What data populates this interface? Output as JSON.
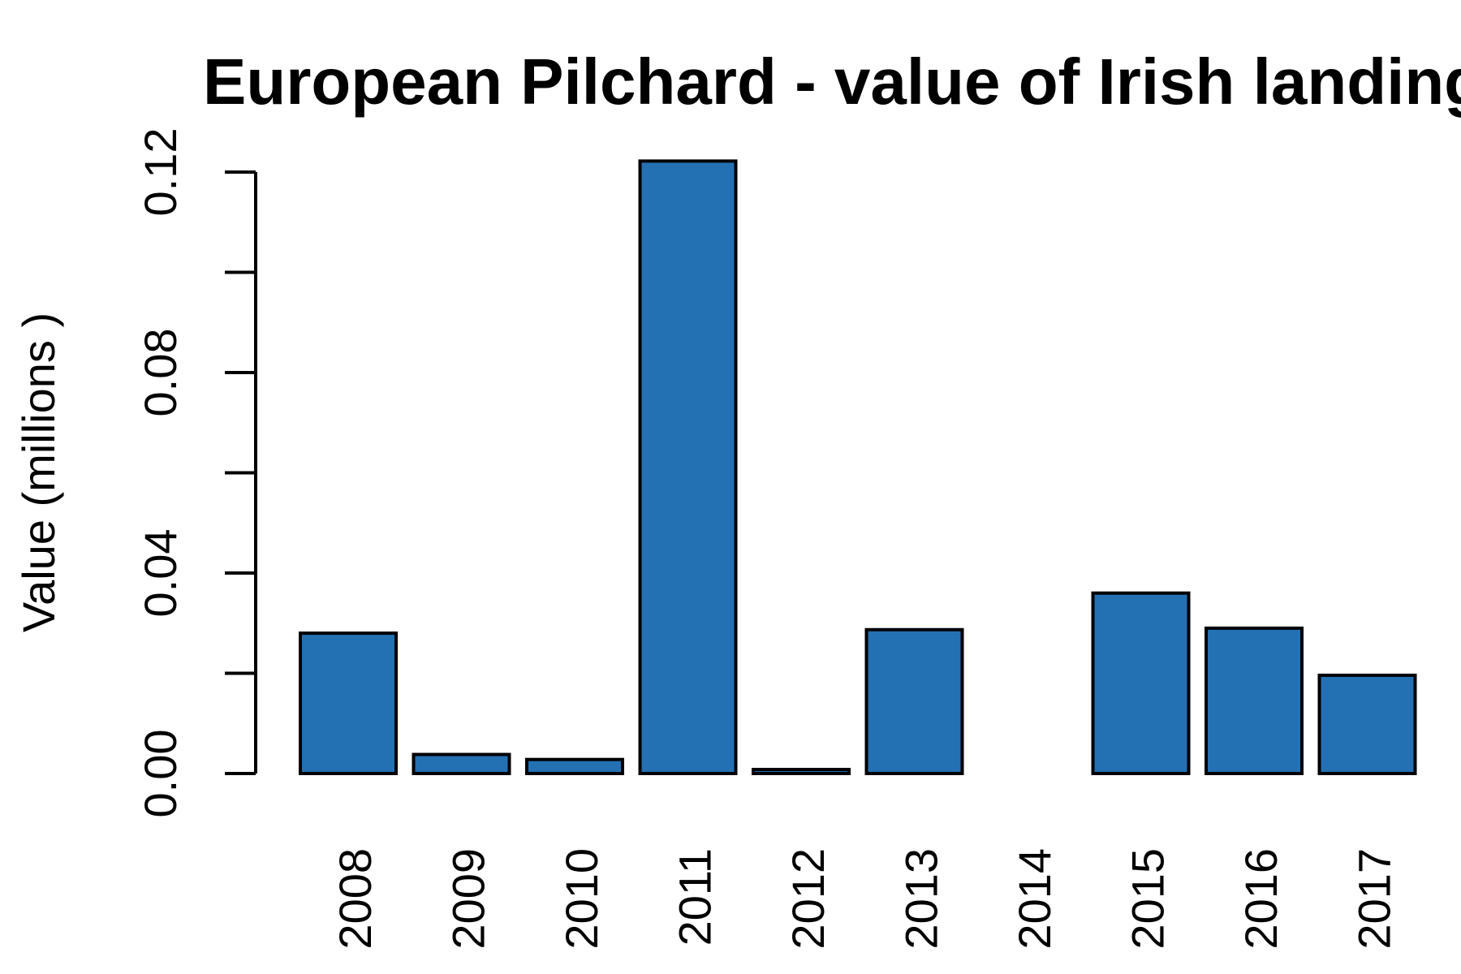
{
  "chart_data": {
    "type": "bar",
    "title": "European Pilchard - value of Irish landings",
    "xlabel": "",
    "ylabel": "Value (millions )",
    "categories": [
      "2008",
      "2009",
      "2010",
      "2011",
      "2012",
      "2013",
      "2014",
      "2015",
      "2016",
      "2017"
    ],
    "values": [
      0.028,
      0.0038,
      0.0028,
      0.1222,
      0.0008,
      0.0287,
      0.0,
      0.036,
      0.029,
      0.0196
    ],
    "ylim": [
      0,
      0.12
    ],
    "yticks": [
      0,
      0.02,
      0.04,
      0.06,
      0.08,
      0.1,
      0.12
    ],
    "ytick_labels": [
      "0.00",
      "",
      "0.04",
      "",
      "0.08",
      "",
      "0.12"
    ],
    "bar_color": "#2371B3",
    "grid": false,
    "legend": "none"
  }
}
